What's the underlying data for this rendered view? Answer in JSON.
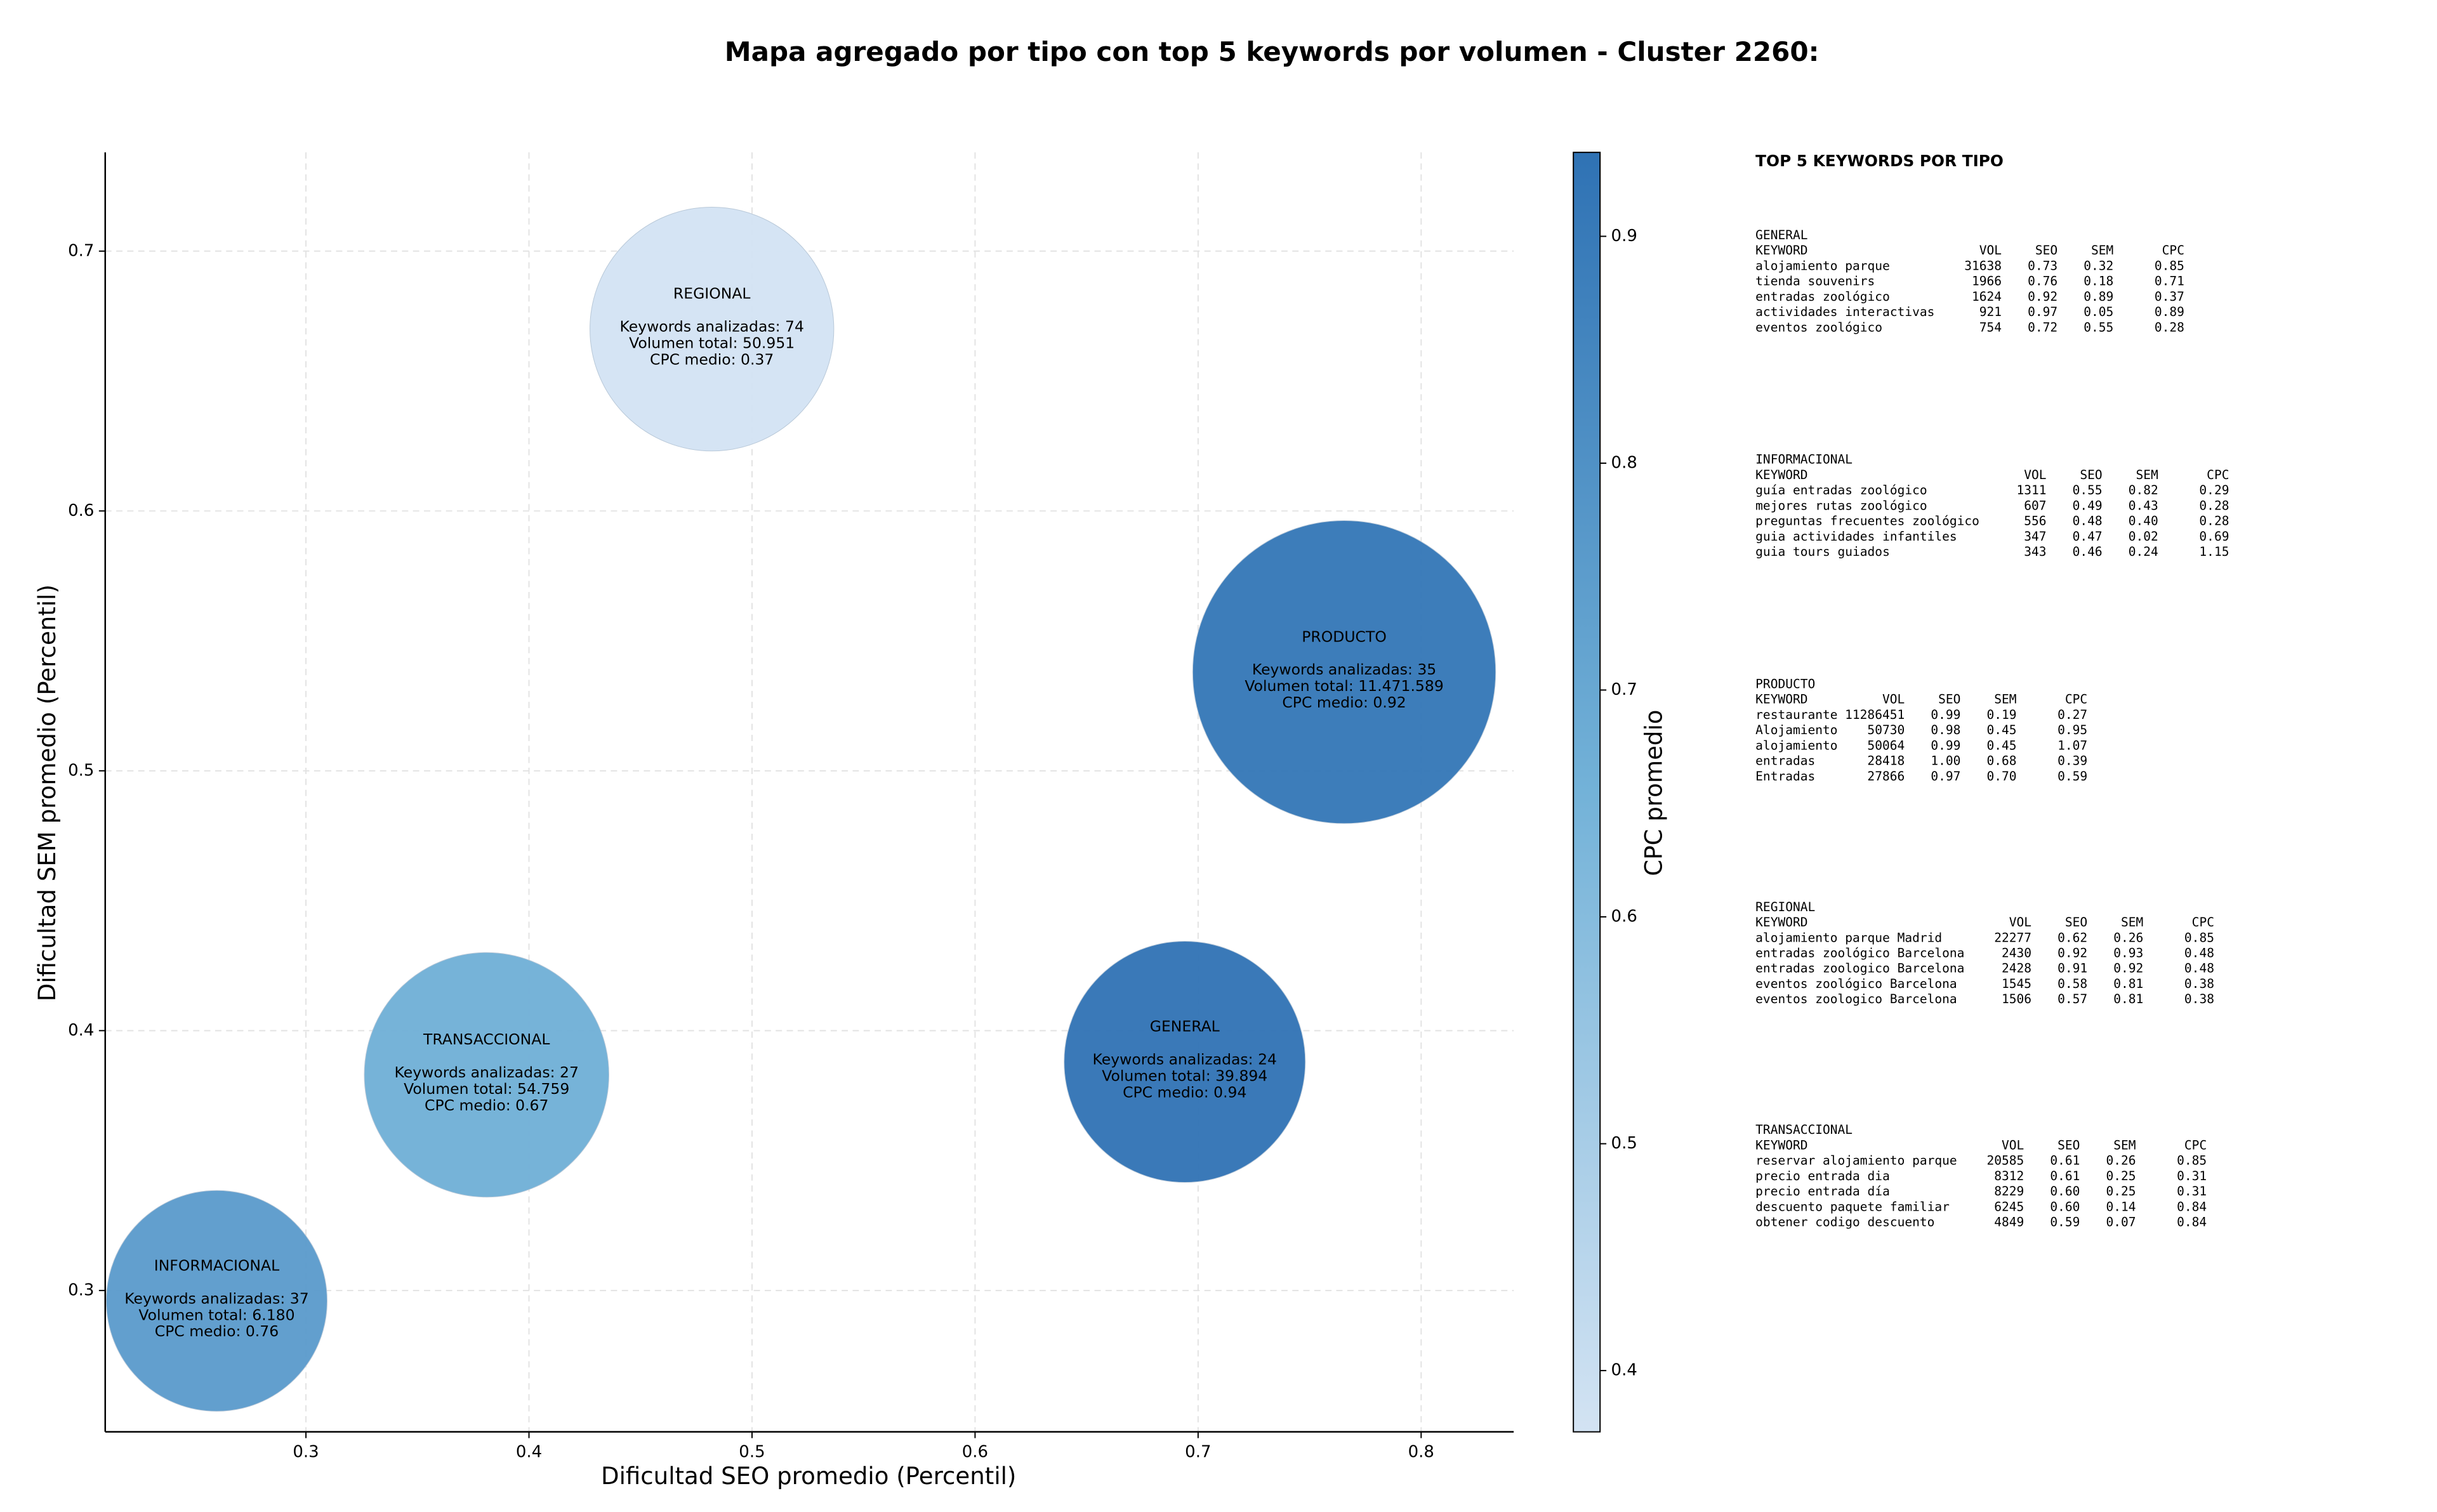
{
  "chart_data": {
    "type": "bubble",
    "title": "Mapa agregado por tipo con top 5 keywords por volumen - Cluster 2260:",
    "x_label": "Dificultad SEO promedio (Percentil)",
    "y_label": "Dificultad SEM promedio (Percentil)",
    "xlim": [
      0.21,
      0.8415
    ],
    "ylim": [
      0.2456,
      0.738
    ],
    "xticks": [
      0.3,
      0.4,
      0.5,
      0.6,
      0.7,
      0.8
    ],
    "yticks": [
      0.3,
      0.4,
      0.5,
      0.6,
      0.7
    ],
    "grid": true,
    "points": [
      {
        "x": 0.482,
        "y": 0.67,
        "volume": 50951,
        "cpc": 0.37,
        "lines": [
          "REGIONAL",
          "Keywords analizadas: 74",
          "Volumen total: 50.951",
          "CPC medio: 0.37"
        ]
      },
      {
        "x": 0.7655,
        "y": 0.538,
        "volume": 11471589,
        "cpc": 0.92,
        "lines": [
          "PRODUCTO",
          "Keywords analizadas: 35",
          "Volumen total: 11.471.589",
          "CPC medio: 0.92"
        ]
      },
      {
        "x": 0.694,
        "y": 0.388,
        "volume": 39894,
        "cpc": 0.94,
        "lines": [
          "GENERAL",
          "Keywords analizadas: 24",
          "Volumen total: 39.894",
          "CPC medio: 0.94"
        ]
      },
      {
        "x": 0.381,
        "y": 0.383,
        "volume": 54759,
        "cpc": 0.67,
        "lines": [
          "TRANSACCIONAL",
          "Keywords analizadas: 27",
          "Volumen total: 54.759",
          "CPC medio: 0.67"
        ]
      },
      {
        "x": 0.26,
        "y": 0.296,
        "volume": 6180,
        "cpc": 0.76,
        "lines": [
          "INFORMACIONAL",
          "Keywords analizadas: 37",
          "Volumen total: 6.180",
          "CPC medio: 0.76"
        ]
      }
    ],
    "colorbar": {
      "label": "CPC promedio",
      "lim": [
        0.373,
        0.937
      ],
      "ticks": [
        0.4,
        0.5,
        0.6,
        0.7,
        0.8,
        0.9
      ],
      "colormap": [
        "#d3e3f3",
        "#73b2d8",
        "#2f72b4"
      ]
    }
  },
  "panel": {
    "title": "TOP 5 KEYWORDS POR TIPO",
    "columns": [
      "KEYWORD",
      "VOL",
      "SEO",
      "SEM",
      "CPC"
    ],
    "sections": [
      {
        "name": "GENERAL",
        "rows": [
          [
            "alojamiento parque",
            "31638",
            "0.73",
            "0.32",
            "0.85"
          ],
          [
            "tienda souvenirs",
            "1966",
            "0.76",
            "0.18",
            "0.71"
          ],
          [
            "entradas zoológico",
            "1624",
            "0.92",
            "0.89",
            "0.37"
          ],
          [
            "actividades interactivas",
            "921",
            "0.97",
            "0.05",
            "0.89"
          ],
          [
            "eventos zoológico",
            "754",
            "0.72",
            "0.55",
            "0.28"
          ]
        ]
      },
      {
        "name": "INFORMACIONAL",
        "rows": [
          [
            "guía entradas zoológico",
            "1311",
            "0.55",
            "0.82",
            "0.29"
          ],
          [
            "mejores rutas zoológico",
            "607",
            "0.49",
            "0.43",
            "0.28"
          ],
          [
            "preguntas frecuentes zoológico",
            "556",
            "0.48",
            "0.40",
            "0.28"
          ],
          [
            "guia actividades infantiles",
            "347",
            "0.47",
            "0.02",
            "0.69"
          ],
          [
            "guia tours guiados",
            "343",
            "0.46",
            "0.24",
            "1.15"
          ]
        ]
      },
      {
        "name": "PRODUCTO",
        "rows": [
          [
            "restaurante",
            "11286451",
            "0.99",
            "0.19",
            "0.27"
          ],
          [
            "Alojamiento",
            "50730",
            "0.98",
            "0.45",
            "0.95"
          ],
          [
            "alojamiento",
            "50064",
            "0.99",
            "0.45",
            "1.07"
          ],
          [
            "entradas",
            "28418",
            "1.00",
            "0.68",
            "0.39"
          ],
          [
            "Entradas",
            "27866",
            "0.97",
            "0.70",
            "0.59"
          ]
        ]
      },
      {
        "name": "REGIONAL",
        "rows": [
          [
            "alojamiento parque Madrid",
            "22277",
            "0.62",
            "0.26",
            "0.85"
          ],
          [
            "entradas zoológico Barcelona",
            "2430",
            "0.92",
            "0.93",
            "0.48"
          ],
          [
            "entradas zoologico Barcelona",
            "2428",
            "0.91",
            "0.92",
            "0.48"
          ],
          [
            "eventos zoológico Barcelona",
            "1545",
            "0.58",
            "0.81",
            "0.38"
          ],
          [
            "eventos zoologico Barcelona",
            "1506",
            "0.57",
            "0.81",
            "0.38"
          ]
        ]
      },
      {
        "name": "TRANSACCIONAL",
        "rows": [
          [
            "reservar alojamiento parque",
            "20585",
            "0.61",
            "0.26",
            "0.85"
          ],
          [
            "precio entrada dia",
            "8312",
            "0.61",
            "0.25",
            "0.31"
          ],
          [
            "precio entrada día",
            "8229",
            "0.60",
            "0.25",
            "0.31"
          ],
          [
            "descuento paquete familiar",
            "6245",
            "0.60",
            "0.14",
            "0.84"
          ],
          [
            "obtener codigo descuento",
            "4849",
            "0.59",
            "0.07",
            "0.84"
          ]
        ]
      }
    ]
  }
}
